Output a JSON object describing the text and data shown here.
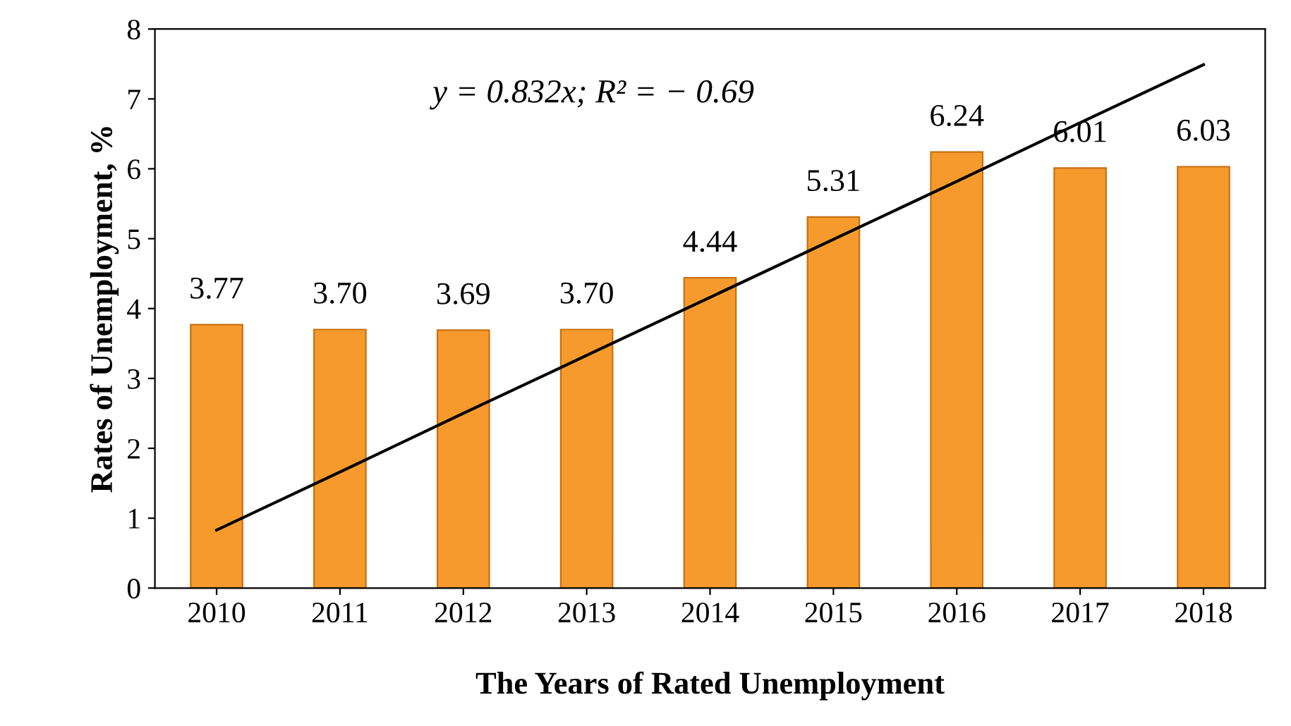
{
  "chart_data": {
    "type": "bar",
    "xlabel": "The Years of Rated Unemployment",
    "ylabel": "Rates of Unemployment, %",
    "categories": [
      "2010",
      "2011",
      "2012",
      "2013",
      "2014",
      "2015",
      "2016",
      "2017",
      "2018"
    ],
    "series": [
      {
        "color": "#f79a2e",
        "values": [
          3.77,
          3.7,
          3.69,
          3.7,
          4.44,
          5.31,
          6.24,
          6.01,
          6.03
        ],
        "value_labels": [
          "3.77",
          "3.70",
          "3.69",
          "3.70",
          "4.44",
          "5.31",
          "6.24",
          "6.01",
          "6.03"
        ]
      },
      {
        "type": "line",
        "color": "#000000",
        "values": [
          0.83,
          1.66,
          2.5,
          3.33,
          4.16,
          4.99,
          5.82,
          6.66,
          7.49
        ]
      }
    ],
    "annotations": [
      "y = 0.832x; R² = − 0.69"
    ],
    "ylim": [
      0,
      8
    ],
    "yticks": [
      0,
      1,
      2,
      3,
      4,
      5,
      6,
      7,
      8
    ],
    "grid": false,
    "legend": false
  }
}
